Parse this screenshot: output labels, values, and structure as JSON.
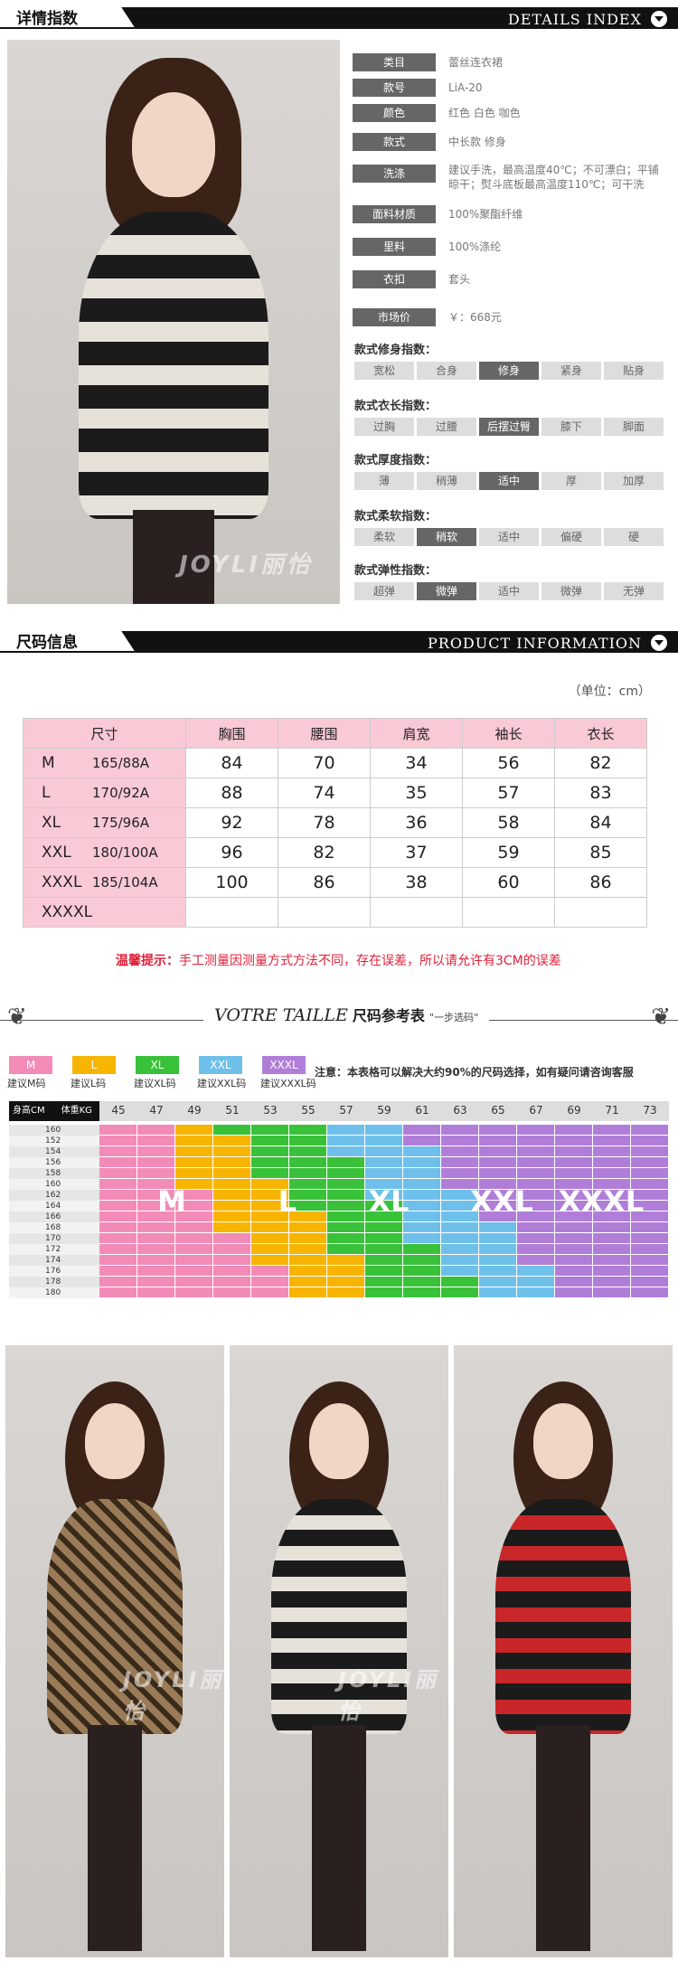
{
  "details_header": {
    "tab": "详情指数",
    "right": "DETAILS  INDEX"
  },
  "specs": [
    {
      "label": "类目",
      "value": "蕾丝连衣裙"
    },
    {
      "label": "款号",
      "value": "LiA-20"
    },
    {
      "label": "颜色",
      "value": "红色  白色  咖色"
    },
    {
      "label": "款式",
      "value": "中长款 修身"
    },
    {
      "label": "洗涤",
      "value": "建议手洗，最高温度40℃；不可漂白；平铺晾干；熨斗底板最高温度110℃；可干洗"
    },
    {
      "label": "面料材质",
      "value": "100%聚酯纤维"
    },
    {
      "label": "里料",
      "value": "100%涤纶"
    },
    {
      "label": "衣扣",
      "value": "套头"
    },
    {
      "label": "市场价",
      "value": "￥：668元"
    }
  ],
  "indices": [
    {
      "title": "款式修身指数：",
      "options": [
        "宽松",
        "合身",
        "修身",
        "紧身",
        "贴身"
      ],
      "selected": 2
    },
    {
      "title": "款式衣长指数：",
      "options": [
        "过胸",
        "过腰",
        "后摆过臀",
        "膝下",
        "脚面"
      ],
      "selected": 2
    },
    {
      "title": "款式厚度指数：",
      "options": [
        "薄",
        "稍薄",
        "适中",
        "厚",
        "加厚"
      ],
      "selected": 2
    },
    {
      "title": "款式柔软指数：",
      "options": [
        "柔软",
        "稍软",
        "适中",
        "偏硬",
        "硬"
      ],
      "selected": 1
    },
    {
      "title": "款式弹性指数：",
      "options": [
        "超弹",
        "微弹",
        "适中",
        "微弹",
        "无弹"
      ],
      "selected": 1
    }
  ],
  "product_header": {
    "tab": "尺码信息",
    "right": "PRODUCT  INFORMATION"
  },
  "unit": "（单位：cm）",
  "size_table": {
    "headers": [
      "尺寸",
      "胸围",
      "腰围",
      "肩宽",
      "袖长",
      "衣长"
    ],
    "rows": [
      {
        "size": "M",
        "spec": "165/88A",
        "values": [
          "84",
          "70",
          "34",
          "56",
          "82"
        ]
      },
      {
        "size": "L",
        "spec": "170/92A",
        "values": [
          "88",
          "74",
          "35",
          "57",
          "83"
        ]
      },
      {
        "size": "XL",
        "spec": "175/96A",
        "values": [
          "92",
          "78",
          "36",
          "58",
          "84"
        ]
      },
      {
        "size": "XXL",
        "spec": "180/100A",
        "values": [
          "96",
          "82",
          "37",
          "59",
          "85"
        ]
      },
      {
        "size": "XXXL",
        "spec": "185/104A",
        "values": [
          "100",
          "86",
          "38",
          "60",
          "86"
        ]
      },
      {
        "size": "XXXXL",
        "spec": "",
        "values": [
          "",
          "",
          "",
          "",
          ""
        ]
      }
    ]
  },
  "tip": {
    "label": "温馨提示：",
    "text": "手工测量因测量方式方法不同，存在误差，所以请允许有3CM的误差"
  },
  "votre": {
    "title": "VOTRE TAILLE",
    "sub": "尺码参考表",
    "small": "\"一步选码\""
  },
  "legend": [
    {
      "code": "M",
      "label": "建议M码",
      "color": "#f28bb7"
    },
    {
      "code": "L",
      "label": "建议L码",
      "color": "#f7b400"
    },
    {
      "code": "XL",
      "label": "建议XL码",
      "color": "#39c13a"
    },
    {
      "code": "XXL",
      "label": "建议XXL码",
      "color": "#6ec0ea"
    },
    {
      "code": "XXXL",
      "label": "建议XXXL码",
      "color": "#b07ed8"
    }
  ],
  "note": "注意：本表格可以解决大约90%的尺码选择，如有疑问请咨询客服",
  "chart_header": {
    "height": "身高CM",
    "weight": "体重KG"
  },
  "weights": [
    "45",
    "47",
    "49",
    "51",
    "53",
    "55",
    "57",
    "59",
    "61",
    "63",
    "65",
    "67",
    "69",
    "71",
    "73"
  ],
  "heights": [
    "160",
    "152",
    "154",
    "156",
    "158",
    "160",
    "162",
    "164",
    "166",
    "168",
    "170",
    "172",
    "174",
    "176",
    "178",
    "180"
  ],
  "chart_labels": [
    "M",
    "L",
    "XL",
    "XXL",
    "XXXL"
  ],
  "watermark": "JOYLI丽怡"
}
